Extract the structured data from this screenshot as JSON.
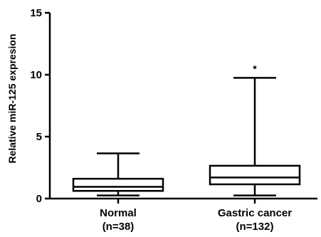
{
  "chart_data": {
    "type": "box",
    "title": "",
    "xlabel": "",
    "ylabel": "Relative miR-125 expresion",
    "ylim": [
      0,
      15
    ],
    "yticks": [
      0,
      5,
      10,
      15
    ],
    "grid": false,
    "legend": "none",
    "color": "#000000",
    "categories": [
      {
        "label": "Normal",
        "sublabel": "(n=38)"
      },
      {
        "label": "Gastric cancer",
        "sublabel": "(n=132)"
      }
    ],
    "boxes": [
      {
        "min": 0.25,
        "q1": 0.62,
        "median": 0.95,
        "q3": 1.6,
        "max": 3.65,
        "annotation": ""
      },
      {
        "min": 0.25,
        "q1": 1.15,
        "median": 1.7,
        "q3": 2.65,
        "max": 9.75,
        "annotation": "*"
      }
    ]
  }
}
